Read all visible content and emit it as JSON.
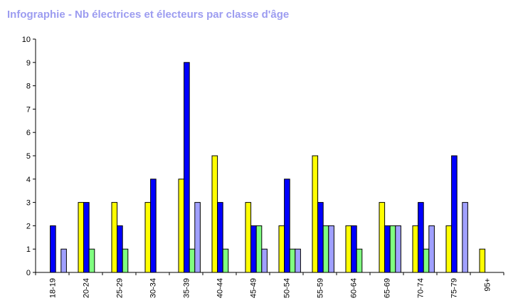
{
  "chart_data": {
    "type": "bar",
    "title": "Infographie - Nb électrices et électeurs par classe d'âge",
    "xlabel": "",
    "ylabel": "",
    "ylim": [
      0,
      10
    ],
    "yticks": [
      "0",
      "1",
      "2",
      "3",
      "4",
      "5",
      "6",
      "7",
      "8",
      "9",
      "10"
    ],
    "categories": [
      "18-19",
      "20-24",
      "25-29",
      "30-34",
      "35-39",
      "40-44",
      "45-49",
      "50-54",
      "55-59",
      "60-64",
      "65-69",
      "70-74",
      "75-79",
      "95+"
    ],
    "series": [
      {
        "color": "#ffff00",
        "values": [
          0,
          3,
          3,
          3,
          4,
          5,
          3,
          2,
          5,
          2,
          3,
          2,
          2,
          1
        ]
      },
      {
        "color": "#0000ff",
        "values": [
          2,
          3,
          2,
          4,
          9,
          3,
          2,
          4,
          3,
          2,
          2,
          3,
          5,
          0
        ]
      },
      {
        "color": "#80ff80",
        "values": [
          0,
          1,
          1,
          0,
          1,
          1,
          2,
          1,
          2,
          1,
          2,
          1,
          0,
          0
        ]
      },
      {
        "color": "#a0a0ff",
        "values": [
          1,
          0,
          0,
          0,
          3,
          0,
          1,
          1,
          2,
          0,
          2,
          2,
          3,
          0
        ]
      }
    ],
    "legend": "none",
    "grid": false
  }
}
